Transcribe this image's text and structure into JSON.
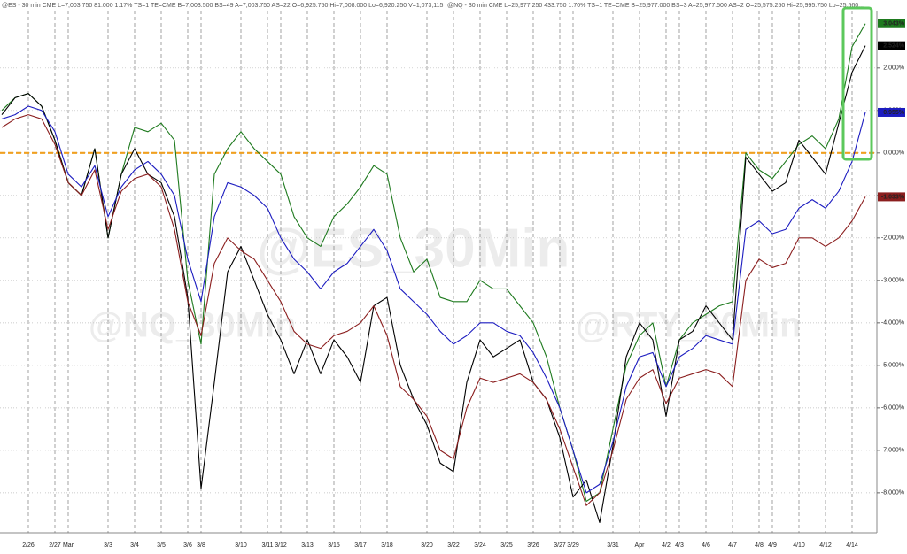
{
  "chart_data": {
    "type": "line",
    "header": [
      "@ES - 30 min  CME  L=7,003.750  81.000  1.17%  TS=1  TE=CME  B=7,003.500  BS=49  A=7,003.750  AS=22  O=6,925.750  Hi=7,008.000  Lo=6,920.250  V=1,073,115",
      "@NQ - 30 min  CME  L=25,977.250  433.750  1.70%  TS=1  TE=CME  B=25,977.000  BS=3  A=25,977.500  AS=2  O=25,575.250  Hi=25,995.750  Lo=25,560..."
    ],
    "watermarks": [
      "@ES_30Min",
      "@NQ_30Min",
      "@RTY_30Min"
    ],
    "categories": [
      null,
      null,
      "2/26",
      null,
      "2/27",
      "Mar",
      null,
      null,
      "3/3",
      null,
      "3/4",
      null,
      "3/5",
      null,
      "3/6",
      "3/8",
      null,
      null,
      "3/10",
      null,
      "3/11",
      "3/12",
      null,
      "3/13",
      null,
      "3/15",
      null,
      "3/17",
      null,
      "3/18",
      null,
      null,
      "3/20",
      null,
      "3/22",
      null,
      "3/24",
      null,
      "3/25",
      null,
      "3/26",
      null,
      "3/27",
      "3/29",
      null,
      null,
      "3/31",
      null,
      "Apr",
      null,
      "4/2",
      "4/3",
      null,
      "4/6",
      null,
      "4/7",
      null,
      "4/8",
      "4/9",
      null,
      "4/10",
      null,
      "4/12",
      null,
      "4/14",
      null
    ],
    "series": [
      {
        "color": "#1e7a1e",
        "last_label": "3.043%",
        "values": [
          1.0,
          1.3,
          1.4,
          1.1,
          0.3,
          -0.7,
          -1.0,
          0.1,
          -2.0,
          -0.5,
          0.6,
          0.5,
          0.7,
          0.3,
          -3.0,
          -4.5,
          -0.5,
          0.1,
          0.5,
          0.1,
          -0.2,
          -0.5,
          -1.5,
          -2.0,
          -2.2,
          -1.5,
          -1.2,
          -0.8,
          -0.3,
          -0.5,
          -2.0,
          -2.8,
          -2.5,
          -3.4,
          -3.5,
          -3.5,
          -3.0,
          -3.2,
          -3.2,
          -3.6,
          -4.0,
          -4.8,
          -6.0,
          -7.0,
          -8.2,
          -8.0,
          -6.5,
          -5.0,
          -4.3,
          -4.0,
          -5.5,
          -4.4,
          -4.0,
          -3.8,
          -3.6,
          -3.5,
          0.0,
          -0.4,
          -0.6,
          -0.2,
          0.2,
          0.4,
          0.1,
          0.8,
          2.5,
          3.043
        ]
      },
      {
        "color": "#000000",
        "last_label": "2.524%",
        "values": [
          0.9,
          1.3,
          1.4,
          1.1,
          0.3,
          -0.7,
          -1.0,
          0.1,
          -2.0,
          -0.5,
          0.1,
          -0.5,
          -0.7,
          -1.5,
          -3.4,
          -7.9,
          -5.4,
          -2.8,
          -2.2,
          -3.0,
          -3.8,
          -4.4,
          -5.2,
          -4.4,
          -5.2,
          -4.4,
          -4.8,
          -5.4,
          -3.6,
          -3.4,
          -5.0,
          -5.8,
          -6.4,
          -7.3,
          -7.5,
          -5.4,
          -4.4,
          -4.8,
          -4.6,
          -4.4,
          -5.4,
          -5.8,
          -6.7,
          -8.1,
          -7.7,
          -8.7,
          -6.9,
          -4.8,
          -4.0,
          -4.4,
          -6.2,
          -4.4,
          -4.2,
          -3.6,
          -4.0,
          -4.4,
          -0.1,
          -0.5,
          -0.9,
          -0.7,
          0.3,
          -0.1,
          -0.5,
          0.7,
          1.9,
          2.524
        ]
      },
      {
        "color": "#1c1cc0",
        "last_label": "0.955%",
        "values": [
          0.8,
          0.9,
          1.1,
          1.0,
          0.5,
          -0.5,
          -0.8,
          -0.3,
          -1.5,
          -0.8,
          -0.4,
          -0.2,
          -0.5,
          -1.0,
          -2.5,
          -3.5,
          -1.5,
          -0.7,
          -0.8,
          -1.0,
          -1.3,
          -2.0,
          -2.5,
          -2.8,
          -3.2,
          -2.8,
          -2.6,
          -2.2,
          -1.8,
          -2.3,
          -3.2,
          -3.5,
          -3.8,
          -4.2,
          -4.5,
          -4.3,
          -4.0,
          -4.0,
          -4.2,
          -4.3,
          -4.7,
          -5.3,
          -6.0,
          -7.0,
          -8.0,
          -7.8,
          -6.8,
          -5.5,
          -4.8,
          -4.7,
          -5.5,
          -4.8,
          -4.6,
          -4.3,
          -4.4,
          -4.5,
          -1.8,
          -1.6,
          -1.9,
          -1.8,
          -1.3,
          -1.1,
          -1.3,
          -0.9,
          -0.2,
          0.955
        ]
      },
      {
        "color": "#8b1e1e",
        "last_label": "-1.033%",
        "values": [
          0.6,
          0.8,
          0.9,
          0.8,
          0.2,
          -0.7,
          -1.0,
          -0.4,
          -1.8,
          -0.9,
          -0.6,
          -0.5,
          -0.8,
          -1.8,
          -3.5,
          -4.3,
          -2.6,
          -2.0,
          -2.3,
          -2.5,
          -3.0,
          -3.5,
          -4.2,
          -4.5,
          -4.6,
          -4.3,
          -4.2,
          -4.0,
          -3.6,
          -4.3,
          -5.5,
          -5.8,
          -6.2,
          -7.0,
          -7.2,
          -6.0,
          -5.3,
          -5.4,
          -5.3,
          -5.2,
          -5.4,
          -5.8,
          -6.5,
          -7.4,
          -8.3,
          -8.0,
          -7.0,
          -5.8,
          -5.3,
          -5.1,
          -5.9,
          -5.3,
          -5.2,
          -5.1,
          -5.2,
          -5.5,
          -3.0,
          -2.5,
          -2.7,
          -2.6,
          -2.0,
          -2.0,
          -2.2,
          -2.0,
          -1.6,
          -1.033
        ]
      }
    ],
    "hline": {
      "value": 0,
      "color": "#f0a020"
    },
    "ylim": [
      -8.94,
      3.35
    ],
    "yticks": [
      {
        "value": 2,
        "label": "2.000%"
      },
      {
        "value": 1,
        "label": "1.000%"
      },
      {
        "value": 0,
        "label": "0.000%"
      },
      {
        "value": -1,
        "label": "-1.000%"
      },
      {
        "value": -2,
        "label": "-2.000%"
      },
      {
        "value": -3,
        "label": "-3.000%"
      },
      {
        "value": -4,
        "label": "-4.000%"
      },
      {
        "value": -5,
        "label": "-5.000%"
      },
      {
        "value": -6,
        "label": "-6.000%"
      },
      {
        "value": -7,
        "label": "-7.000%"
      },
      {
        "value": -8,
        "label": "-8.000%"
      }
    ],
    "grid": true
  }
}
